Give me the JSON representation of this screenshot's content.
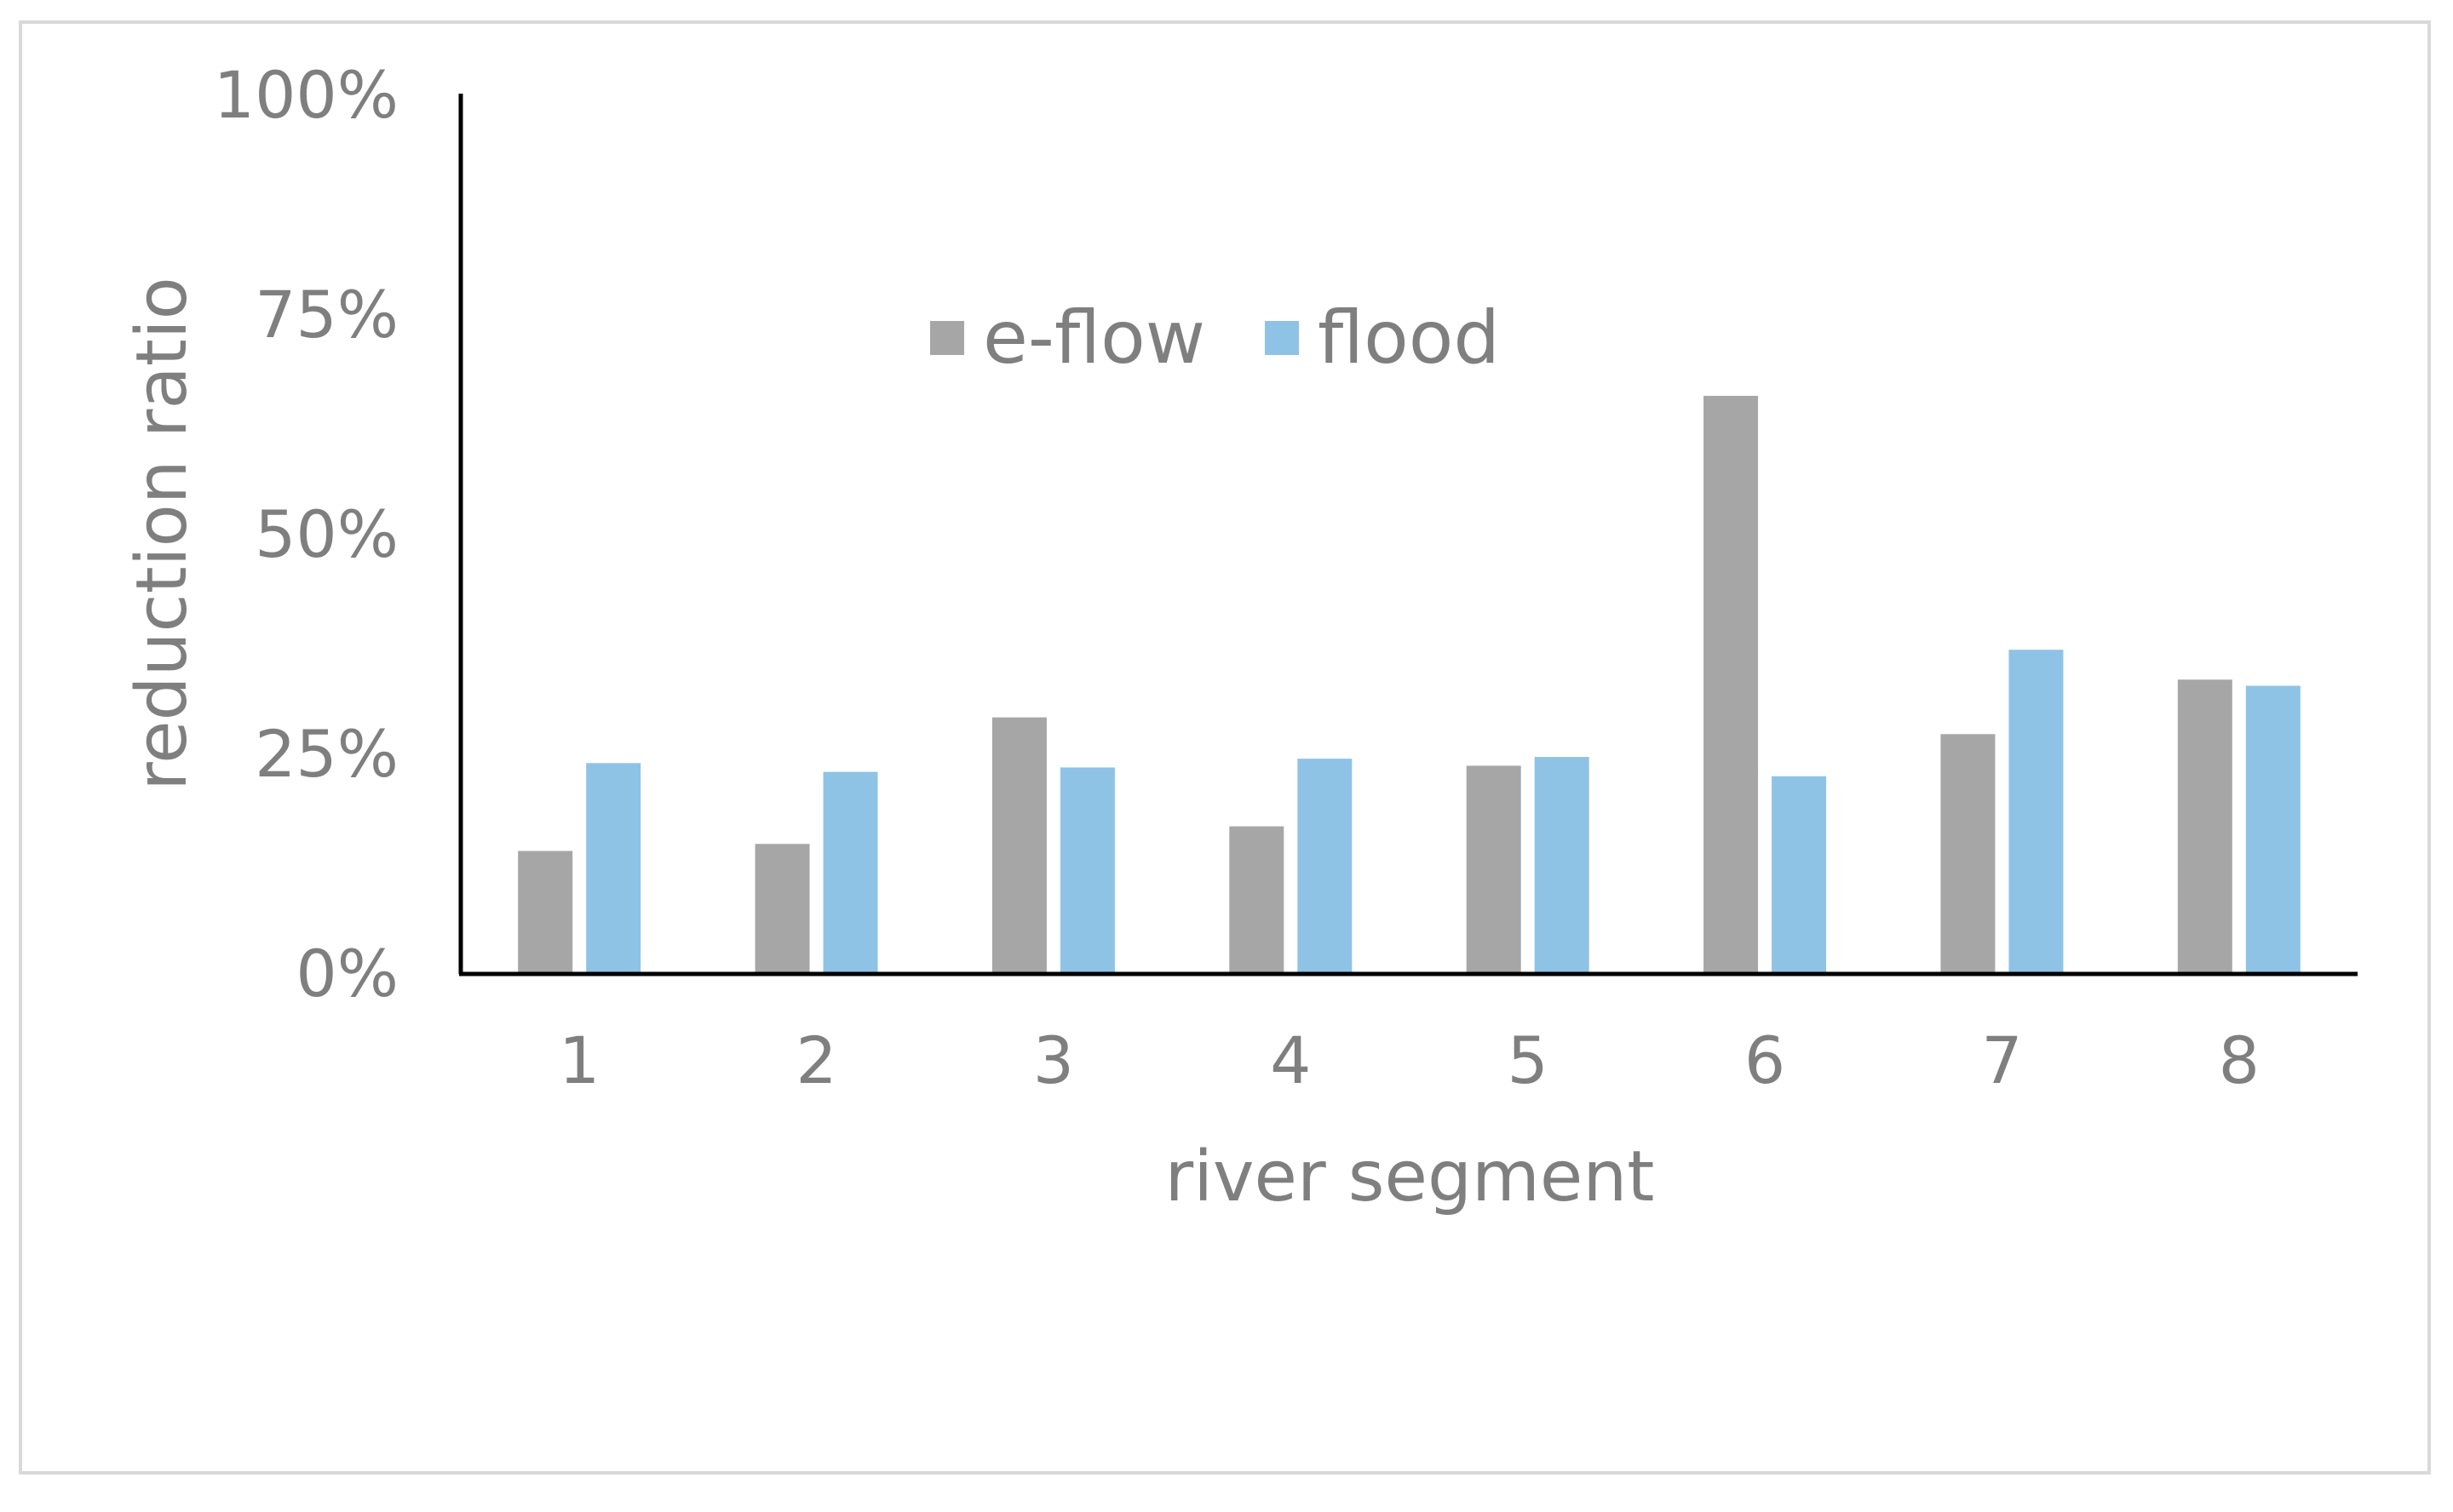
{
  "chart_data": {
    "type": "bar",
    "title": "",
    "xlabel": "river segment",
    "ylabel": "reduction ratio",
    "ylim": [
      0,
      1
    ],
    "y_ticks": [
      {
        "value": 0,
        "label": "0%"
      },
      {
        "value": 0.25,
        "label": "25%"
      },
      {
        "value": 0.5,
        "label": "50%"
      },
      {
        "value": 0.75,
        "label": "75%"
      },
      {
        "value": 1,
        "label": "100%"
      }
    ],
    "categories": [
      "1",
      "2",
      "3",
      "4",
      "5",
      "6",
      "7",
      "8"
    ],
    "series": [
      {
        "name": "e-flow",
        "color": "#a6a6a6",
        "values": [
          0.14,
          0.148,
          0.292,
          0.168,
          0.237,
          0.658,
          0.273,
          0.335
        ]
      },
      {
        "name": "flood",
        "color": "#8ec3e6",
        "values": [
          0.24,
          0.23,
          0.235,
          0.245,
          0.247,
          0.225,
          0.369,
          0.328
        ]
      }
    ],
    "legend_position": "top-center",
    "grid": false
  }
}
